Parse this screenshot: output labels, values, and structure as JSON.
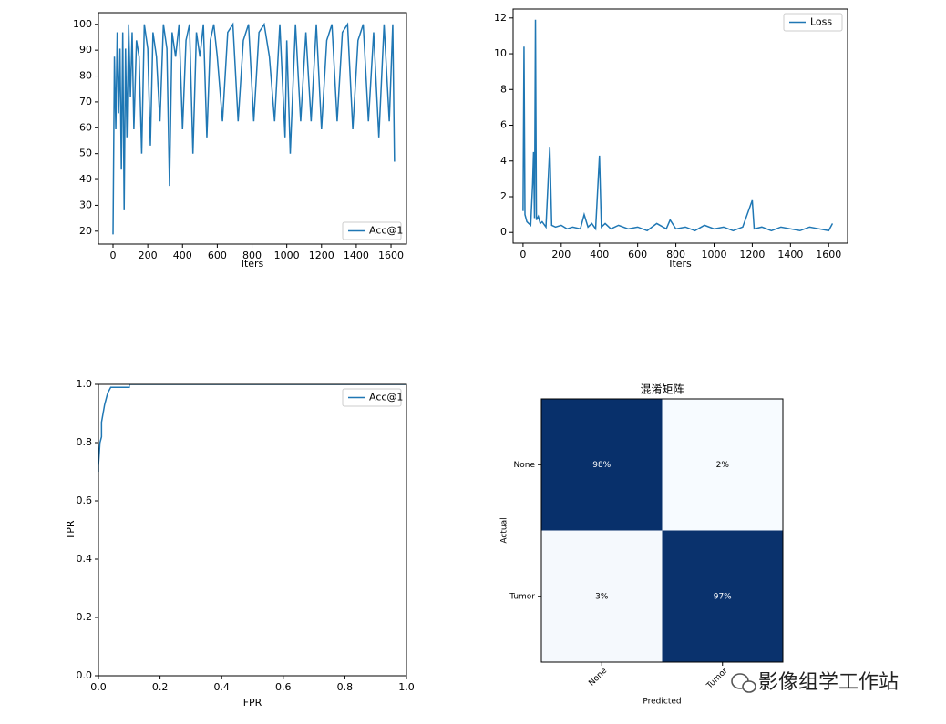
{
  "chart_data": [
    {
      "type": "line",
      "xlabel": "Iters",
      "legend": "lower right",
      "xlim": [
        -84,
        1689
      ],
      "ylim": [
        15,
        104.5
      ],
      "xticks": [
        0,
        200,
        400,
        600,
        800,
        1000,
        1200,
        1400,
        1600
      ],
      "yticks": [
        20,
        30,
        40,
        50,
        60,
        70,
        80,
        90,
        100
      ],
      "x": [
        0,
        8,
        16,
        24,
        32,
        40,
        48,
        56,
        64,
        72,
        80,
        90,
        100,
        110,
        120,
        135,
        150,
        165,
        180,
        200,
        215,
        230,
        250,
        270,
        290,
        310,
        325,
        340,
        360,
        380,
        400,
        420,
        440,
        460,
        480,
        500,
        520,
        540,
        560,
        580,
        600,
        630,
        660,
        690,
        720,
        750,
        780,
        810,
        840,
        870,
        900,
        930,
        960,
        990,
        1000,
        1020,
        1050,
        1080,
        1110,
        1140,
        1170,
        1200,
        1230,
        1260,
        1290,
        1320,
        1350,
        1380,
        1410,
        1440,
        1470,
        1500,
        1530,
        1560,
        1590,
        1610,
        1620
      ],
      "series": [
        {
          "name": "Acc@1",
          "color": "#1f77b4",
          "values": [
            18.75,
            87.5,
            59.4,
            96.9,
            65.6,
            90.6,
            43.8,
            96.9,
            28.1,
            90.6,
            56.3,
            100,
            71.9,
            96.9,
            59.4,
            93.8,
            87.5,
            50,
            100,
            90.6,
            53.1,
            96.9,
            87.5,
            62.5,
            100,
            90.6,
            37.5,
            96.9,
            87.5,
            100,
            59.4,
            93.8,
            100,
            50,
            96.9,
            87.5,
            100,
            56.3,
            93.8,
            100,
            87.5,
            62.5,
            96.9,
            100,
            62.5,
            93.8,
            100,
            62.5,
            96.9,
            100,
            87.5,
            62.5,
            100,
            56.3,
            93.8,
            50,
            100,
            62.5,
            96.9,
            62.5,
            100,
            59.4,
            93.8,
            100,
            62.5,
            96.9,
            100,
            59.4,
            93.8,
            100,
            62.5,
            96.9,
            56.3,
            100,
            62.5,
            100,
            46.9
          ]
        }
      ]
    },
    {
      "type": "line",
      "xlabel": "Iters",
      "legend": "upper right",
      "xlim": [
        -52,
        1699
      ],
      "ylim": [
        -0.6,
        12.5
      ],
      "xticks": [
        0,
        200,
        400,
        600,
        800,
        1000,
        1200,
        1400,
        1600
      ],
      "yticks": [
        0,
        2,
        4,
        6,
        8,
        10,
        12
      ],
      "x": [
        0,
        5,
        10,
        20,
        30,
        40,
        50,
        55,
        60,
        65,
        70,
        80,
        90,
        100,
        120,
        140,
        150,
        170,
        200,
        230,
        260,
        300,
        320,
        340,
        360,
        380,
        400,
        410,
        430,
        460,
        500,
        550,
        600,
        650,
        700,
        750,
        770,
        800,
        850,
        900,
        950,
        1000,
        1050,
        1100,
        1150,
        1200,
        1210,
        1250,
        1300,
        1350,
        1400,
        1450,
        1500,
        1550,
        1600,
        1620
      ],
      "series": [
        {
          "name": "Loss",
          "color": "#1f77b4",
          "values": [
            1.2,
            10.4,
            1.0,
            0.6,
            0.5,
            0.4,
            2.7,
            4.5,
            0.8,
            11.9,
            0.7,
            0.9,
            0.5,
            0.6,
            0.3,
            4.8,
            0.4,
            0.3,
            0.4,
            0.2,
            0.3,
            0.2,
            1.0,
            0.3,
            0.5,
            0.2,
            4.3,
            0.3,
            0.5,
            0.2,
            0.4,
            0.2,
            0.3,
            0.1,
            0.5,
            0.2,
            0.7,
            0.2,
            0.3,
            0.1,
            0.4,
            0.2,
            0.3,
            0.1,
            0.3,
            1.8,
            0.2,
            0.3,
            0.1,
            0.3,
            0.2,
            0.1,
            0.3,
            0.2,
            0.1,
            0.5
          ]
        }
      ]
    },
    {
      "type": "line",
      "xlabel": "FPR",
      "ylabel": "TPR",
      "legend": "upper right",
      "xlim": [
        0,
        1
      ],
      "ylim": [
        0,
        1
      ],
      "xticks": [
        {
          "value": 0,
          "label": "0.0"
        },
        {
          "value": 0.2,
          "label": "0.2"
        },
        {
          "value": 0.4,
          "label": "0.4"
        },
        {
          "value": 0.6,
          "label": "0.6"
        },
        {
          "value": 0.8,
          "label": "0.8"
        },
        {
          "value": 1,
          "label": "1.0"
        }
      ],
      "yticks": [
        {
          "value": 0,
          "label": "0.0"
        },
        {
          "value": 0.2,
          "label": "0.2"
        },
        {
          "value": 0.4,
          "label": "0.4"
        },
        {
          "value": 0.6,
          "label": "0.6"
        },
        {
          "value": 0.8,
          "label": "0.8"
        },
        {
          "value": 1,
          "label": "1.0"
        }
      ],
      "x": [
        0,
        0,
        0.005,
        0.01,
        0.01,
        0.015,
        0.02,
        0.025,
        0.03,
        0.04,
        0.1,
        0.1,
        1.0
      ],
      "series": [
        {
          "name": "Acc@1",
          "color": "#1f77b4",
          "values": [
            0.7,
            0.72,
            0.8,
            0.82,
            0.87,
            0.9,
            0.93,
            0.95,
            0.97,
            0.99,
            0.99,
            1.0,
            1.0
          ]
        }
      ]
    },
    {
      "type": "heatmap",
      "title": "混淆矩阵",
      "xlabel": "Predicted",
      "ylabel": "Actual",
      "xcategories": [
        "None",
        "Tumor"
      ],
      "ycategories": [
        "None",
        "Tumor"
      ],
      "colormap": [
        "#f7fbff",
        "#08306b"
      ],
      "values": [
        [
          98,
          2
        ],
        [
          3,
          97
        ]
      ],
      "value_labels": [
        [
          "98%",
          "2%"
        ],
        [
          "3%",
          "97%"
        ]
      ]
    }
  ],
  "watermark": "影像组学工作站"
}
